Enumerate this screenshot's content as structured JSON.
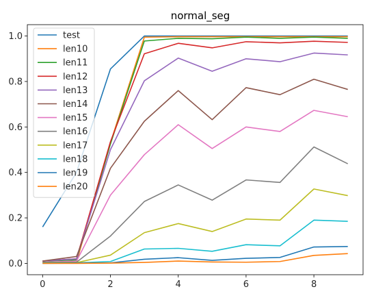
{
  "chart_data": {
    "type": "line",
    "title": "normal_seg",
    "xlabel": "",
    "ylabel": "",
    "xlim": [
      -0.45,
      9.45
    ],
    "ylim": [
      -0.05,
      1.05
    ],
    "xticks": [
      0,
      2,
      4,
      6,
      8
    ],
    "yticks": [
      0.0,
      0.2,
      0.4,
      0.6,
      0.8,
      1.0
    ],
    "grid": false,
    "legend_position": "upper-left",
    "x": [
      0,
      1,
      2,
      3,
      4,
      5,
      6,
      7,
      8,
      9
    ],
    "series": [
      {
        "name": "test",
        "color": "#1f77b4",
        "values": [
          0.16,
          0.4,
          0.855,
          1.0,
          1.0,
          1.0,
          1.0,
          1.0,
          1.0,
          1.0
        ]
      },
      {
        "name": "len10",
        "color": "#ff7f0e",
        "values": [
          0.005,
          0.005,
          0.53,
          0.995,
          0.997,
          0.997,
          0.997,
          0.997,
          0.997,
          0.997
        ]
      },
      {
        "name": "len11",
        "color": "#2ca02c",
        "values": [
          0.01,
          0.015,
          0.525,
          0.978,
          0.99,
          0.988,
          0.995,
          0.99,
          0.995,
          0.99
        ]
      },
      {
        "name": "len12",
        "color": "#d62728",
        "values": [
          0.01,
          0.02,
          0.535,
          0.922,
          0.968,
          0.948,
          0.975,
          0.97,
          0.977,
          0.972
        ]
      },
      {
        "name": "len13",
        "color": "#9467bd",
        "values": [
          0.01,
          0.02,
          0.5,
          0.803,
          0.903,
          0.845,
          0.9,
          0.887,
          0.925,
          0.917
        ]
      },
      {
        "name": "len14",
        "color": "#8c564b",
        "values": [
          0.01,
          0.03,
          0.418,
          0.625,
          0.76,
          0.632,
          0.773,
          0.742,
          0.81,
          0.765
        ]
      },
      {
        "name": "len15",
        "color": "#e377c2",
        "values": [
          0.005,
          0.01,
          0.3,
          0.478,
          0.61,
          0.505,
          0.6,
          0.58,
          0.673,
          0.645
        ]
      },
      {
        "name": "len16",
        "color": "#7f7f7f",
        "values": [
          0.005,
          0.005,
          0.12,
          0.272,
          0.345,
          0.278,
          0.367,
          0.356,
          0.512,
          0.438
        ]
      },
      {
        "name": "len17",
        "color": "#bcbd22",
        "values": [
          0.002,
          0.003,
          0.036,
          0.135,
          0.175,
          0.14,
          0.195,
          0.19,
          0.327,
          0.298
        ]
      },
      {
        "name": "len18",
        "color": "#17becf",
        "values": [
          0.001,
          0.002,
          0.008,
          0.063,
          0.066,
          0.053,
          0.082,
          0.077,
          0.19,
          0.185
        ]
      },
      {
        "name": "len19",
        "color": "#1f77b4",
        "values": [
          0.0,
          0.001,
          0.002,
          0.018,
          0.025,
          0.013,
          0.022,
          0.026,
          0.072,
          0.074
        ]
      },
      {
        "name": "len20",
        "color": "#ff7f0e",
        "values": [
          0.0,
          0.0,
          0.001,
          0.004,
          0.01,
          0.006,
          0.005,
          0.008,
          0.035,
          0.043
        ]
      }
    ]
  }
}
